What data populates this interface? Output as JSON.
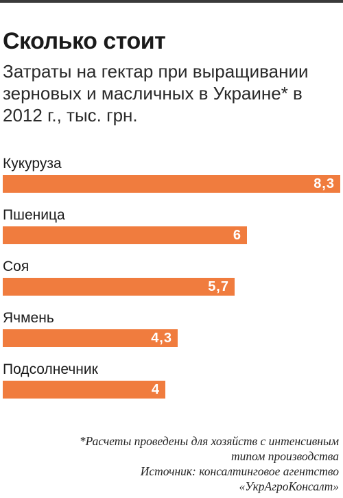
{
  "header": {
    "title": "Сколько стоит",
    "subtitle": "Затраты на гектар при выращивании зерновых и масличных в Украине* в 2012 г., тыс. грн."
  },
  "colors": {
    "bar": "#f07c3e",
    "rule": "#3a3a3a"
  },
  "chart_data": {
    "type": "bar",
    "orientation": "horizontal",
    "title": "Сколько стоит",
    "subtitle": "Затраты на гектар при выращивании зерновых и масличных в Украине* в 2012 г., тыс. грн.",
    "categories": [
      "Кукуруза",
      "Пшеница",
      "Соя",
      "Ячмень",
      "Подсолнечник"
    ],
    "values": [
      8.3,
      6,
      5.7,
      4.3,
      4
    ],
    "value_labels": [
      "8,3",
      "6",
      "5,7",
      "4,3",
      "4"
    ],
    "xlim": [
      0,
      8.3
    ],
    "grid": false,
    "legend": "none"
  },
  "footnote": {
    "note_line1": "*Расчеты проведены для хозяйств с интенсивным",
    "note_line2": "типом производства",
    "source_line1": "Источник: консалтинговое агентство",
    "source_line2": "«УкрАгроКонсалт»"
  }
}
